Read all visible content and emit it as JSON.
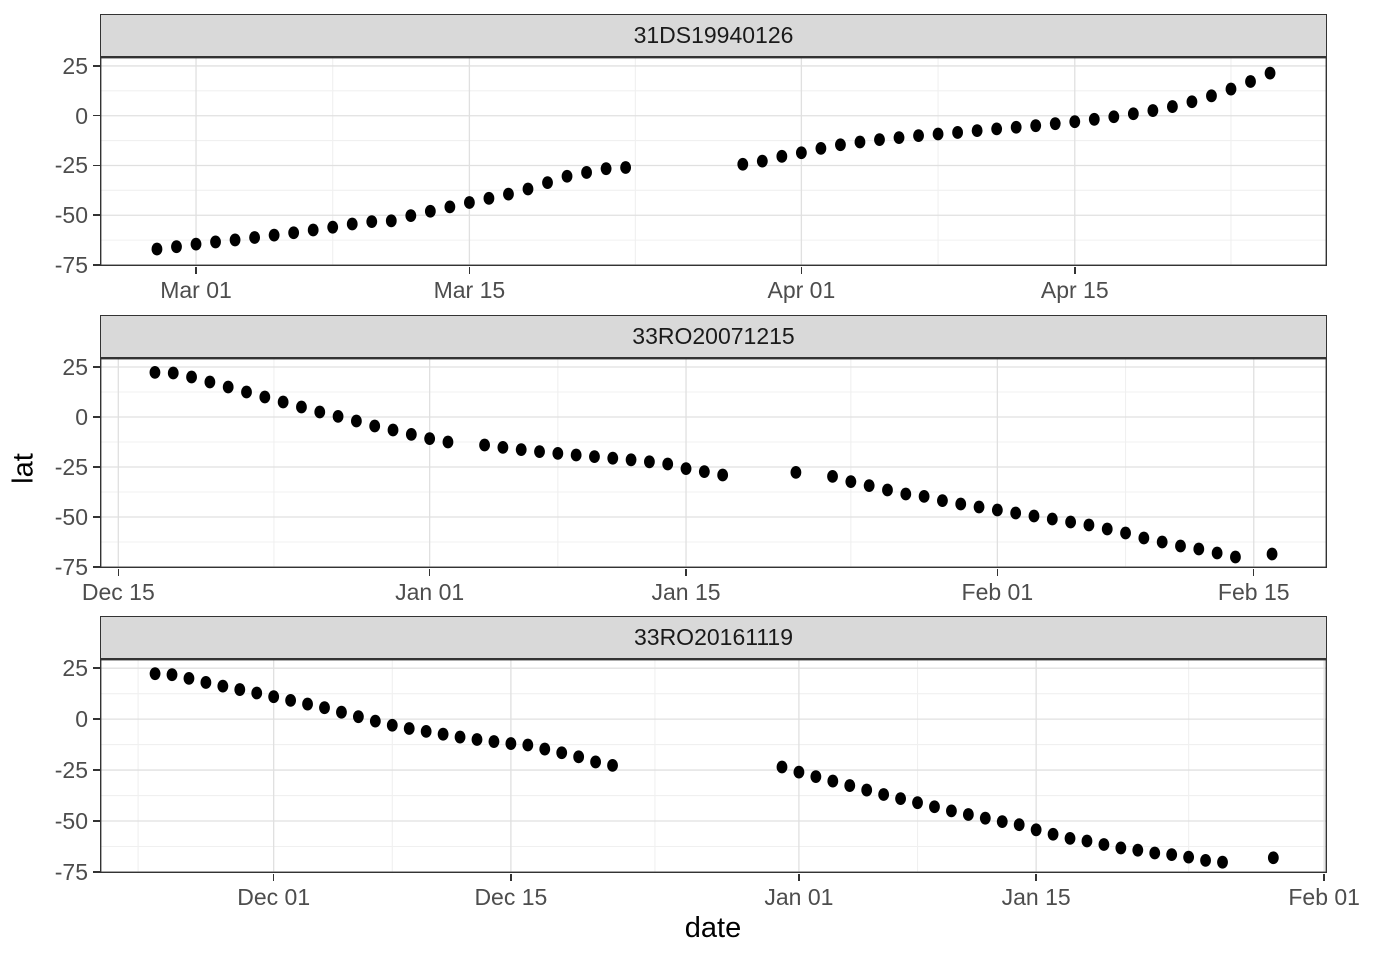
{
  "figure": {
    "x_axis_title": "date",
    "y_axis_title": "lat",
    "y_domain": [
      -75.5,
      29.5
    ],
    "y_ticks": [
      {
        "label": "25",
        "value": 25
      },
      {
        "label": "0",
        "value": 0
      },
      {
        "label": "-25",
        "value": -25
      },
      {
        "label": "-50",
        "value": -50
      },
      {
        "label": "-75",
        "value": -75
      }
    ],
    "y_minor": [
      12.5,
      -12.5,
      -37.5,
      -62.5
    ],
    "colors": {
      "strip_fill": "#d9d9d9",
      "strip_border": "#333333",
      "panel_background": "#ffffff",
      "panel_border": "#333333",
      "grid_major": "#e0e0e0",
      "grid_minor": "#f0f0f0",
      "point": "#000000",
      "tick_label": "#4d4d4d",
      "axis_title": "#000000",
      "tick_mark": "#333333"
    }
  },
  "chart_data": {
    "type": "scatter",
    "title": "",
    "xlabel": "date",
    "ylabel": "lat",
    "legend": "none",
    "grid": "on",
    "facet_titles": [
      "31DS19940126",
      "33RO20071215",
      "33RO20161119"
    ],
    "facets": [
      {
        "title": "31DS19940126",
        "x_domain": [
          "1994-02-24T02:00:00Z",
          "1994-04-27T22:00:00Z"
        ],
        "x_ticks": [
          {
            "label": "Mar 01",
            "date": "1994-03-01"
          },
          {
            "label": "Mar 15",
            "date": "1994-03-15"
          },
          {
            "label": "Apr 01",
            "date": "1994-04-01"
          },
          {
            "label": "Apr 15",
            "date": "1994-04-15"
          }
        ],
        "x_minor": [
          "1994-03-08",
          "1994-03-23T12:00:00Z",
          "1994-04-08",
          "1994-04-23"
        ],
        "points": [
          [
            "1994-02-27",
            -67
          ],
          [
            "1994-02-28",
            -65.8
          ],
          [
            "1994-03-01",
            -64.5
          ],
          [
            "1994-03-02",
            -63.4
          ],
          [
            "1994-03-03",
            -62.4
          ],
          [
            "1994-03-04",
            -61.2
          ],
          [
            "1994-03-05",
            -60
          ],
          [
            "1994-03-06",
            -58.8
          ],
          [
            "1994-03-07",
            -57.4
          ],
          [
            "1994-03-08",
            -56
          ],
          [
            "1994-03-09",
            -54.4
          ],
          [
            "1994-03-10",
            -53.2
          ],
          [
            "1994-03-11",
            -52.8
          ],
          [
            "1994-03-12",
            -50.2
          ],
          [
            "1994-03-13",
            -48
          ],
          [
            "1994-03-14",
            -45.8
          ],
          [
            "1994-03-15",
            -43.6
          ],
          [
            "1994-03-16",
            -41.5
          ],
          [
            "1994-03-17",
            -39.4
          ],
          [
            "1994-03-18",
            -36.8
          ],
          [
            "1994-03-19",
            -33.6
          ],
          [
            "1994-03-20",
            -30.4
          ],
          [
            "1994-03-21",
            -28.5
          ],
          [
            "1994-03-22",
            -26.6
          ],
          [
            "1994-03-23",
            -26
          ],
          [
            "1994-03-29",
            -24.4
          ],
          [
            "1994-03-30",
            -22.8
          ],
          [
            "1994-03-31",
            -20.4
          ],
          [
            "1994-04-01",
            -18.6
          ],
          [
            "1994-04-02",
            -16.4
          ],
          [
            "1994-04-03",
            -14.6
          ],
          [
            "1994-04-04",
            -13.2
          ],
          [
            "1994-04-05",
            -12
          ],
          [
            "1994-04-06",
            -11
          ],
          [
            "1994-04-07",
            -10
          ],
          [
            "1994-04-08",
            -9.2
          ],
          [
            "1994-04-09",
            -8.4
          ],
          [
            "1994-04-10",
            -7.5
          ],
          [
            "1994-04-11",
            -6.6
          ],
          [
            "1994-04-12",
            -5.8
          ],
          [
            "1994-04-13",
            -5
          ],
          [
            "1994-04-14",
            -4
          ],
          [
            "1994-04-15",
            -3
          ],
          [
            "1994-04-16",
            -1.8
          ],
          [
            "1994-04-17",
            -0.5
          ],
          [
            "1994-04-18",
            1
          ],
          [
            "1994-04-19",
            2.6
          ],
          [
            "1994-04-20",
            4.6
          ],
          [
            "1994-04-21",
            7
          ],
          [
            "1994-04-22",
            10
          ],
          [
            "1994-04-23",
            13.4
          ],
          [
            "1994-04-24",
            17.2
          ],
          [
            "1994-04-25",
            21.4
          ]
        ]
      },
      {
        "title": "33RO20071215",
        "x_domain": [
          "2007-12-14",
          "2008-02-19"
        ],
        "x_ticks": [
          {
            "label": "Dec 15",
            "date": "2007-12-15"
          },
          {
            "label": "Jan 01",
            "date": "2008-01-01"
          },
          {
            "label": "Jan 15",
            "date": "2008-01-15"
          },
          {
            "label": "Feb 01",
            "date": "2008-02-01"
          },
          {
            "label": "Feb 15",
            "date": "2008-02-15"
          }
        ],
        "x_minor": [
          "2007-12-23T12:00:00Z",
          "2008-01-08",
          "2008-01-24",
          "2008-02-08"
        ],
        "points": [
          [
            "2007-12-17",
            22.3
          ],
          [
            "2007-12-18",
            22
          ],
          [
            "2007-12-19",
            20
          ],
          [
            "2007-12-20",
            17.5
          ],
          [
            "2007-12-21",
            15
          ],
          [
            "2007-12-22",
            12.5
          ],
          [
            "2007-12-23",
            10
          ],
          [
            "2007-12-24",
            7.5
          ],
          [
            "2007-12-25",
            5
          ],
          [
            "2007-12-26",
            2.5
          ],
          [
            "2007-12-27",
            0.3
          ],
          [
            "2007-12-28",
            -2
          ],
          [
            "2007-12-29",
            -4.5
          ],
          [
            "2007-12-30",
            -6.5
          ],
          [
            "2007-12-31",
            -8.7
          ],
          [
            "2008-01-01",
            -10.8
          ],
          [
            "2008-01-02",
            -12.5
          ],
          [
            "2008-01-04",
            -14
          ],
          [
            "2008-01-05",
            -15.2
          ],
          [
            "2008-01-06",
            -16.3
          ],
          [
            "2008-01-07",
            -17.3
          ],
          [
            "2008-01-08",
            -18.2
          ],
          [
            "2008-01-09",
            -19
          ],
          [
            "2008-01-10",
            -19.8
          ],
          [
            "2008-01-11",
            -20.6
          ],
          [
            "2008-01-12",
            -21.4
          ],
          [
            "2008-01-13",
            -22.4
          ],
          [
            "2008-01-14",
            -23.5
          ],
          [
            "2008-01-15",
            -25.8
          ],
          [
            "2008-01-16",
            -27.3
          ],
          [
            "2008-01-17",
            -29
          ],
          [
            "2008-01-21",
            -27.7
          ],
          [
            "2008-01-23",
            -29.7
          ],
          [
            "2008-01-24",
            -32.3
          ],
          [
            "2008-01-25",
            -34.3
          ],
          [
            "2008-01-26",
            -36.5
          ],
          [
            "2008-01-27",
            -38.5
          ],
          [
            "2008-01-28",
            -39.7
          ],
          [
            "2008-01-29",
            -41.8
          ],
          [
            "2008-01-30",
            -43.5
          ],
          [
            "2008-01-31",
            -45
          ],
          [
            "2008-02-01",
            -46.5
          ],
          [
            "2008-02-02",
            -48
          ],
          [
            "2008-02-03",
            -49.5
          ],
          [
            "2008-02-04",
            -51
          ],
          [
            "2008-02-05",
            -52.5
          ],
          [
            "2008-02-06",
            -54
          ],
          [
            "2008-02-07",
            -56
          ],
          [
            "2008-02-08",
            -58
          ],
          [
            "2008-02-09",
            -60.5
          ],
          [
            "2008-02-10",
            -62.5
          ],
          [
            "2008-02-11",
            -64.5
          ],
          [
            "2008-02-12",
            -66
          ],
          [
            "2008-02-13",
            -68
          ],
          [
            "2008-02-14",
            -70
          ],
          [
            "2008-02-16",
            -68.5
          ]
        ]
      },
      {
        "title": "33RO20161119",
        "x_domain": [
          "2016-11-20T18:00:00Z",
          "2017-02-01T04:00:00Z"
        ],
        "x_ticks": [
          {
            "label": "Dec 01",
            "date": "2016-12-01"
          },
          {
            "label": "Dec 15",
            "date": "2016-12-15"
          },
          {
            "label": "Jan 01",
            "date": "2017-01-01"
          },
          {
            "label": "Jan 15",
            "date": "2017-01-15"
          },
          {
            "label": "Feb 01",
            "date": "2017-02-01"
          }
        ],
        "x_minor": [
          "2016-11-23",
          "2016-12-08",
          "2016-12-23T12:00:00Z",
          "2017-01-08",
          "2017-01-24"
        ],
        "points": [
          [
            "2016-11-24",
            22.3
          ],
          [
            "2016-11-25",
            21.8
          ],
          [
            "2016-11-26",
            20
          ],
          [
            "2016-11-27",
            18
          ],
          [
            "2016-11-28",
            16.2
          ],
          [
            "2016-11-29",
            14.5
          ],
          [
            "2016-11-30",
            12.8
          ],
          [
            "2016-12-01",
            11
          ],
          [
            "2016-12-02",
            9.2
          ],
          [
            "2016-12-03",
            7.4
          ],
          [
            "2016-12-04",
            5.6
          ],
          [
            "2016-12-05",
            3.4
          ],
          [
            "2016-12-06",
            1.2
          ],
          [
            "2016-12-07",
            -1
          ],
          [
            "2016-12-08",
            -3
          ],
          [
            "2016-12-09",
            -4.6
          ],
          [
            "2016-12-10",
            -6
          ],
          [
            "2016-12-11",
            -7.4
          ],
          [
            "2016-12-12",
            -8.8
          ],
          [
            "2016-12-13",
            -10
          ],
          [
            "2016-12-14",
            -11
          ],
          [
            "2016-12-15",
            -12
          ],
          [
            "2016-12-16",
            -12.7
          ],
          [
            "2016-12-17",
            -14.7
          ],
          [
            "2016-12-18",
            -16.5
          ],
          [
            "2016-12-19",
            -18.5
          ],
          [
            "2016-12-20",
            -21
          ],
          [
            "2016-12-21",
            -22.7
          ],
          [
            "2016-12-31",
            -23.5
          ],
          [
            "2017-01-01",
            -26
          ],
          [
            "2017-01-02",
            -28.2
          ],
          [
            "2017-01-03",
            -30.4
          ],
          [
            "2017-01-04",
            -32.6
          ],
          [
            "2017-01-05",
            -34.8
          ],
          [
            "2017-01-06",
            -37
          ],
          [
            "2017-01-07",
            -39
          ],
          [
            "2017-01-08",
            -41
          ],
          [
            "2017-01-09",
            -43
          ],
          [
            "2017-01-10",
            -45
          ],
          [
            "2017-01-11",
            -46.8
          ],
          [
            "2017-01-12",
            -48.6
          ],
          [
            "2017-01-13",
            -50.3
          ],
          [
            "2017-01-14",
            -51.8
          ],
          [
            "2017-01-15",
            -54.3
          ],
          [
            "2017-01-16",
            -56.5
          ],
          [
            "2017-01-17",
            -58.5
          ],
          [
            "2017-01-18",
            -59.8
          ],
          [
            "2017-01-19",
            -61.5
          ],
          [
            "2017-01-20",
            -63.2
          ],
          [
            "2017-01-21",
            -64.3
          ],
          [
            "2017-01-22",
            -65.7
          ],
          [
            "2017-01-23",
            -66.5
          ],
          [
            "2017-01-24",
            -67.7
          ],
          [
            "2017-01-25",
            -69.3
          ],
          [
            "2017-01-26",
            -70.2
          ],
          [
            "2017-01-29",
            -68
          ]
        ]
      }
    ]
  }
}
